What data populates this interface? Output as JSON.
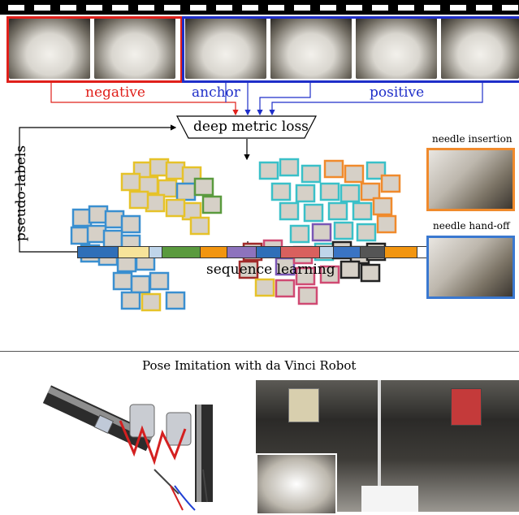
{
  "labels": {
    "negative": "negative",
    "anchor": "anchor",
    "positive": "positive",
    "loss": "deep metric loss",
    "pseudo": "pseudo-labels",
    "sequence": "sequence learning",
    "needle_insertion": "needle insertion",
    "needle_handoff": "needle hand-off",
    "bottom_title": "Pose Imitation with da Vinci Robot"
  },
  "colors": {
    "negative": "#e0201b",
    "anchor": "#1f2fc9",
    "positive": "#1f2fc9",
    "insertion": "#f08a2c",
    "handoff": "#3a78d0"
  },
  "sequence_colors": [
    "#2f6fb8",
    "#f7e39a",
    "#bfd5ea",
    "#5a9a3e",
    "#f2950f",
    "#8d73bd",
    "#2f6fb8",
    "#d9605e",
    "#bfd5ea",
    "#3a74c4",
    "#555555",
    "#f2950f"
  ]
}
